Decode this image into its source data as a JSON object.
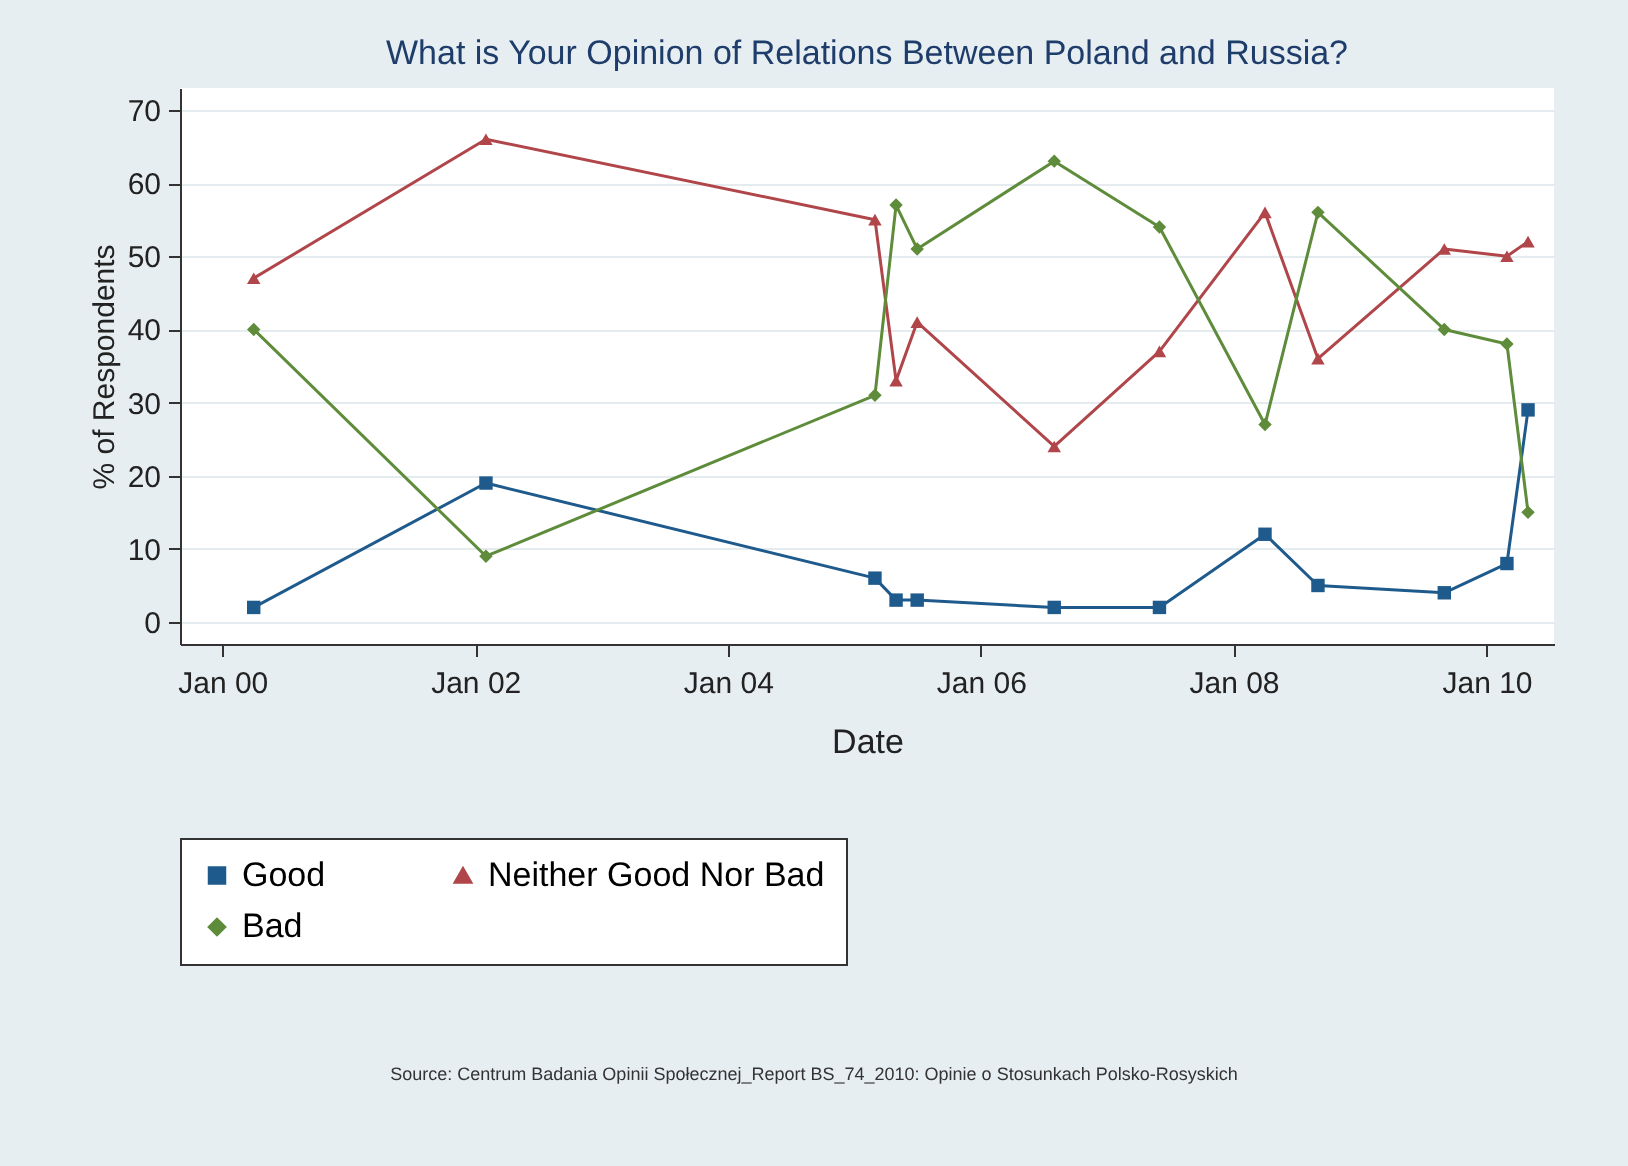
{
  "chart_data": {
    "type": "line",
    "title": "What is Your Opinion of Relations Between Poland and Russia?",
    "xlabel": "Date",
    "ylabel": "% of Respondents",
    "x": [
      "2000-04",
      "2002-02",
      "2005-03",
      "2005-05",
      "2005-07",
      "2006-08",
      "2007-06",
      "2008-04",
      "2008-09",
      "2009-09",
      "2010-03",
      "2010-05"
    ],
    "series": [
      {
        "name": "Good",
        "color": "#1f5a8c",
        "marker": "square",
        "values": [
          2,
          19,
          6,
          3,
          3,
          2,
          2,
          12,
          5,
          4,
          8,
          29
        ]
      },
      {
        "name": "Neither Good Nor Bad",
        "color": "#b0454a",
        "marker": "triangle",
        "values": [
          47,
          66,
          55,
          33,
          41,
          24,
          37,
          56,
          36,
          51,
          50,
          52
        ]
      },
      {
        "name": "Bad",
        "color": "#5e8c3a",
        "marker": "diamond",
        "values": [
          40,
          9,
          31,
          57,
          51,
          63,
          54,
          27,
          56,
          40,
          38,
          15
        ]
      }
    ],
    "xlim": [
      "1999-09",
      "2010-07-15"
    ],
    "xticks": [
      {
        "value": "2000-01",
        "label": "Jan 00"
      },
      {
        "value": "2002-01",
        "label": "Jan 02"
      },
      {
        "value": "2004-01",
        "label": "Jan 04"
      },
      {
        "value": "2006-01",
        "label": "Jan 06"
      },
      {
        "value": "2008-01",
        "label": "Jan 08"
      },
      {
        "value": "2010-01",
        "label": "Jan 10"
      }
    ],
    "ylim": [
      -3,
      73
    ],
    "yticks": [
      0,
      10,
      20,
      30,
      40,
      50,
      60,
      70
    ],
    "grid": "y",
    "legend": "bottom",
    "annotations": [
      "Source: Centrum Badania Opinii Społecznej_Report BS_74_2010: Opinie o Stosunkach Polsko-Rosyskich"
    ]
  }
}
